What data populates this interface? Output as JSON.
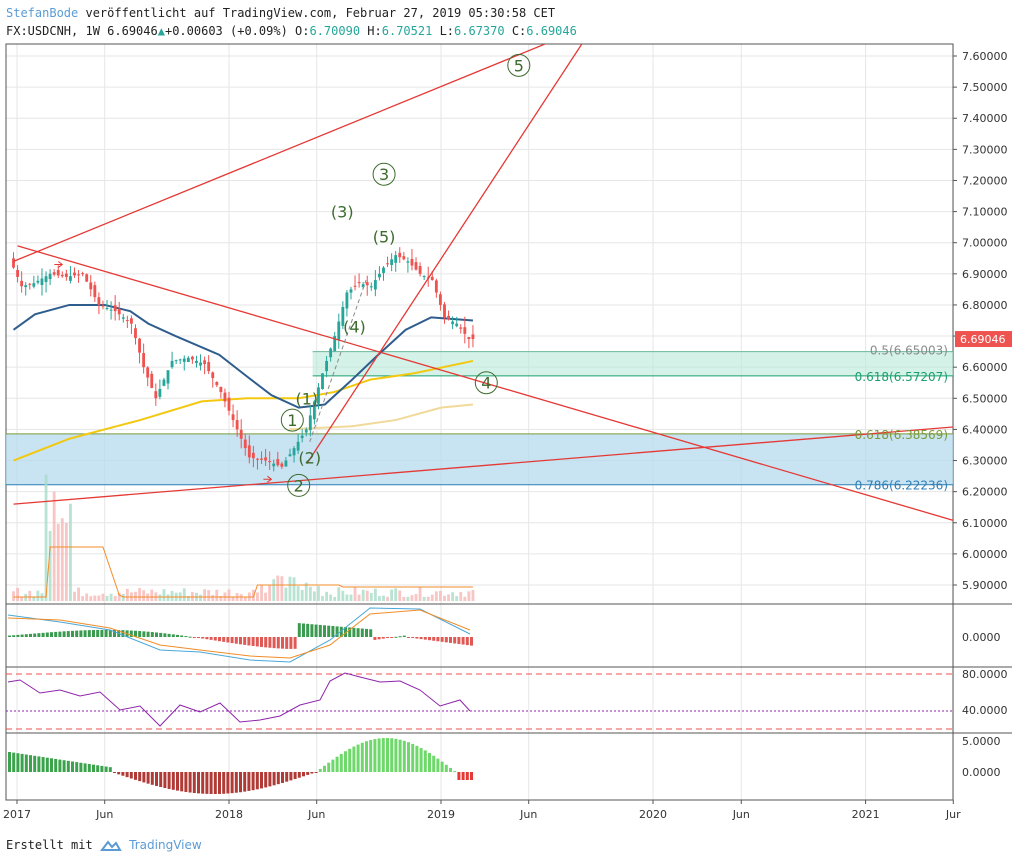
{
  "header": {
    "author": "StefanBode",
    "published": "veröffentlicht auf TradingView.com, Februar 27, 2019 05:30:58 CET",
    "symbol": "FX:USDCNH, 1W",
    "price": "6.69046",
    "change": "+0.00603 (+0.09%)",
    "o_label": "O:",
    "o": "6.70090",
    "h_label": "H:",
    "h": "6.70521",
    "l_label": "L:",
    "l": "6.67370",
    "c_label": "C:",
    "c": "6.69046"
  },
  "footer": {
    "created_with": "Erstellt mit",
    "brand": "TradingView"
  },
  "colors": {
    "up": "#26a69a",
    "down": "#ef5350",
    "trendline": "#e53935",
    "ma_fast": "#2e5d8e",
    "ma_slow": "#f2c811",
    "ma_slow2": "#f0d99a",
    "fib_green": "#b7ead9",
    "fib_blue": "#b5d9ee",
    "wave": "#3d6b2e",
    "rsi": "#8e24aa",
    "grid": "#e6e6e6"
  },
  "chart_data": {
    "type": "candlestick",
    "symbol": "FX:USDCNH",
    "interval": "1W",
    "ylim": [
      5.83,
      7.64
    ],
    "y_ticks": [
      5.9,
      6.0,
      6.1,
      6.2,
      6.3,
      6.4,
      6.5,
      6.6,
      6.7,
      6.8,
      6.9,
      7.0,
      7.1,
      7.2,
      7.3,
      7.4,
      7.5,
      7.6
    ],
    "y_tick_labels": [
      "5.90000",
      "6.00000",
      "6.10000",
      "6.20000",
      "6.30000",
      "6.40000",
      "6.50000",
      "6.60000",
      "6.70000",
      "6.80000",
      "6.90000",
      "7.00000",
      "7.10000",
      "7.20000",
      "7.30000",
      "7.40000",
      "7.50000",
      "7.60000"
    ],
    "x_ticks": [
      "2017",
      "Jun",
      "2018",
      "Jun",
      "2019",
      "Jun",
      "2020",
      "Jun",
      "2021",
      "Jur"
    ],
    "x_tick_dates": [
      "2017-01-01",
      "2017-06-01",
      "2018-01-01",
      "2018-06-01",
      "2019-01-01",
      "2019-06-01",
      "2020-01-01",
      "2020-06-01",
      "2021-01-01",
      "2021-06-01"
    ],
    "last_price": 6.69046,
    "last_price_label": "6.69046",
    "close_series": [
      {
        "date": "2016-12-26",
        "close": 6.95
      },
      {
        "date": "2017-01-16",
        "close": 6.86
      },
      {
        "date": "2017-02-06",
        "close": 6.87
      },
      {
        "date": "2017-03-06",
        "close": 6.9
      },
      {
        "date": "2017-04-03",
        "close": 6.89
      },
      {
        "date": "2017-05-01",
        "close": 6.9
      },
      {
        "date": "2017-05-29",
        "close": 6.8
      },
      {
        "date": "2017-06-26",
        "close": 6.78
      },
      {
        "date": "2017-07-24",
        "close": 6.74
      },
      {
        "date": "2017-08-14",
        "close": 6.6
      },
      {
        "date": "2017-09-04",
        "close": 6.5
      },
      {
        "date": "2017-10-02",
        "close": 6.62
      },
      {
        "date": "2017-10-30",
        "close": 6.63
      },
      {
        "date": "2017-11-27",
        "close": 6.61
      },
      {
        "date": "2017-12-25",
        "close": 6.52
      },
      {
        "date": "2018-01-22",
        "close": 6.4
      },
      {
        "date": "2018-02-12",
        "close": 6.31
      },
      {
        "date": "2018-03-12",
        "close": 6.3
      },
      {
        "date": "2018-04-09",
        "close": 6.28
      },
      {
        "date": "2018-04-30",
        "close": 6.34
      },
      {
        "date": "2018-05-21",
        "close": 6.4
      },
      {
        "date": "2018-06-18",
        "close": 6.58
      },
      {
        "date": "2018-07-09",
        "close": 6.7
      },
      {
        "date": "2018-07-30",
        "close": 6.84
      },
      {
        "date": "2018-08-20",
        "close": 6.87
      },
      {
        "date": "2018-09-10",
        "close": 6.86
      },
      {
        "date": "2018-10-01",
        "close": 6.92
      },
      {
        "date": "2018-10-22",
        "close": 6.96
      },
      {
        "date": "2018-11-12",
        "close": 6.94
      },
      {
        "date": "2018-12-03",
        "close": 6.9
      },
      {
        "date": "2018-12-24",
        "close": 6.88
      },
      {
        "date": "2019-01-14",
        "close": 6.76
      },
      {
        "date": "2019-02-04",
        "close": 6.74
      },
      {
        "date": "2019-02-25",
        "close": 6.69046
      }
    ],
    "fibonacci_levels": [
      {
        "ratio": "0.5",
        "value": 6.65003,
        "label": "0.5(6.65003)"
      },
      {
        "ratio": "0.618",
        "value": 6.57207,
        "label": "0.618(6.57207)"
      },
      {
        "ratio": "0.618",
        "value": 6.38569,
        "label": "0.618(6.38569)"
      },
      {
        "ratio": "0.786",
        "value": 6.22236,
        "label": "0.786(6.22236)"
      }
    ],
    "wave_labels": [
      {
        "label": "1",
        "style": "circle",
        "date": "2018-04-20",
        "price": 6.43
      },
      {
        "label": "2",
        "style": "circle",
        "date": "2018-05-01",
        "price": 6.22
      },
      {
        "label": "3",
        "style": "circle",
        "date": "2018-09-25",
        "price": 7.22
      },
      {
        "label": "4",
        "style": "circle",
        "date": "2019-03-20",
        "price": 6.55
      },
      {
        "label": "5",
        "style": "circle",
        "date": "2019-05-15",
        "price": 7.57
      },
      {
        "label": "(1)",
        "style": "paren",
        "date": "2018-05-15",
        "price": 6.5
      },
      {
        "label": "(2)",
        "style": "paren",
        "date": "2018-05-20",
        "price": 6.31
      },
      {
        "label": "(3)",
        "style": "paren",
        "date": "2018-07-15",
        "price": 7.1
      },
      {
        "label": "(4)",
        "style": "paren",
        "date": "2018-08-05",
        "price": 6.73
      },
      {
        "label": "(5)",
        "style": "paren",
        "date": "2018-09-25",
        "price": 7.02
      }
    ],
    "trendlines": [
      {
        "name": "upper-channel",
        "from": {
          "date": "2016-12-26",
          "price": 6.94
        },
        "to": {
          "date": "2019-07-01",
          "price": 7.64
        }
      },
      {
        "name": "steep-support",
        "from": {
          "date": "2018-05-15",
          "price": 6.29
        },
        "to": {
          "date": "2019-09-01",
          "price": 7.64
        }
      },
      {
        "name": "descending",
        "from": {
          "date": "2017-01-02",
          "price": 6.99
        },
        "to": {
          "date": "2021-06-15",
          "price": 6.1
        }
      },
      {
        "name": "lower-channel",
        "from": {
          "date": "2016-12-26",
          "price": 6.16
        },
        "to": {
          "date": "2021-06-15",
          "price": 6.41
        }
      }
    ],
    "oscillator_panels": [
      {
        "name": "macd",
        "tick_labels": [
          "0.0000"
        ]
      },
      {
        "name": "rsi",
        "tick_labels": [
          "80.0000",
          "40.0000"
        ]
      },
      {
        "name": "momentum",
        "tick_labels": [
          "5.0000",
          "0.0000"
        ]
      }
    ]
  }
}
